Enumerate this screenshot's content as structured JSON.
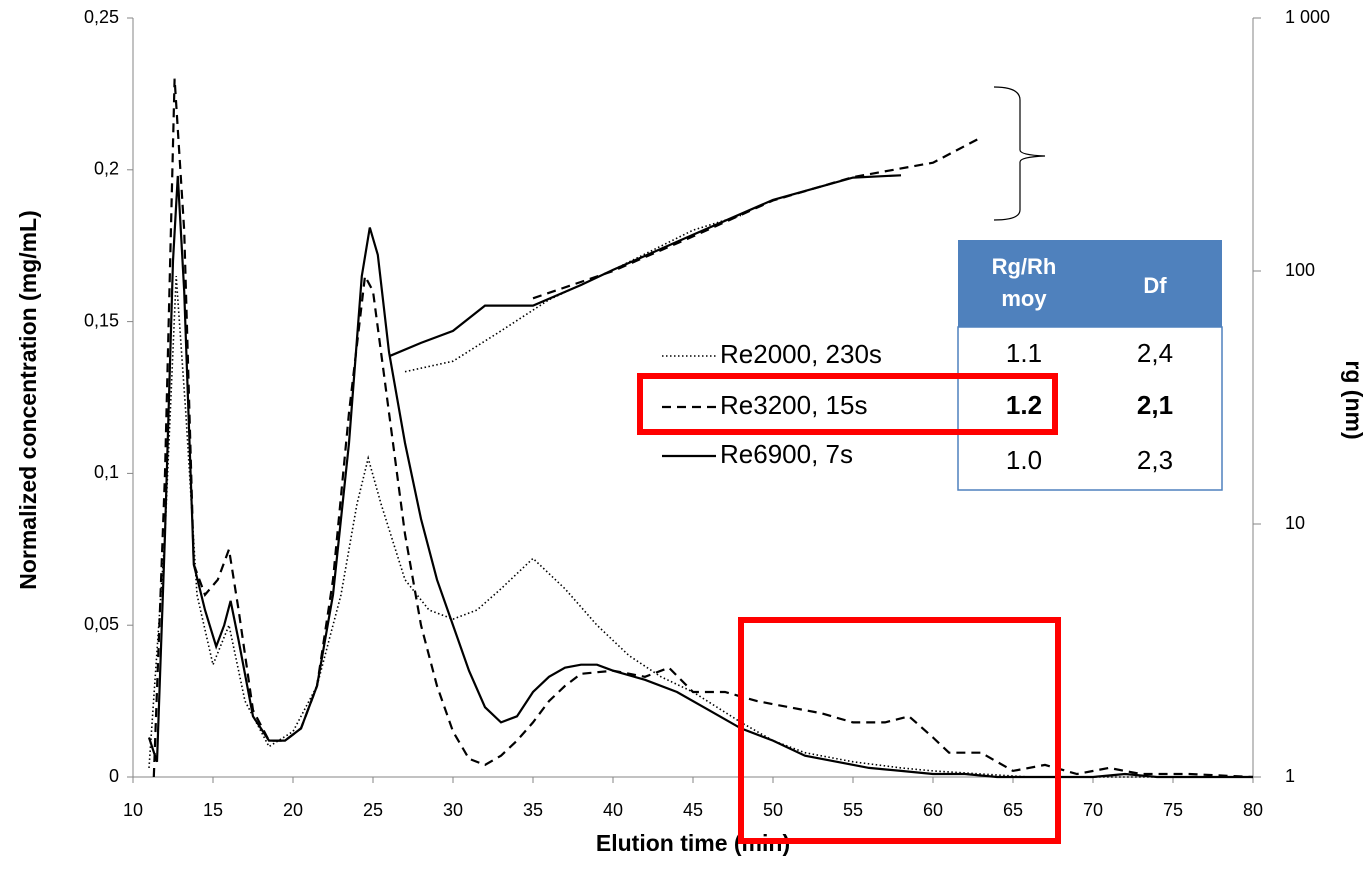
{
  "chart_data": {
    "type": "line",
    "xlabel": "Elution time (min)",
    "ylabel": "Normalized concentration (mg/mL)",
    "y2label": "rg (nm)",
    "xlim": [
      10,
      80
    ],
    "xticks": [
      10,
      15,
      20,
      25,
      30,
      35,
      40,
      45,
      50,
      55,
      60,
      65,
      70,
      75,
      80
    ],
    "ylim": [
      0,
      0.25
    ],
    "yticks": [
      0,
      {
        "value": 0.05,
        "label": "0,05"
      },
      {
        "value": 0.1,
        "label": "0,1"
      },
      {
        "value": 0.15,
        "label": "0,15"
      },
      {
        "value": 0.2,
        "label": "0,2"
      },
      {
        "value": 0.25,
        "label": "0,25"
      }
    ],
    "y2lim": [
      1,
      1000
    ],
    "y2scale": "log",
    "y2ticks": [
      1,
      10,
      100,
      {
        "value": 1000,
        "label": "1 000"
      }
    ],
    "series": [
      {
        "name": "Re2000, 230s",
        "color": "#000000",
        "dash": "dot",
        "x": [
          11,
          12,
          12.7,
          13.3,
          14,
          15,
          16,
          17,
          18.5,
          20,
          21.5,
          23,
          24,
          24.7,
          25.5,
          27,
          28.5,
          30,
          31.5,
          33,
          35,
          37,
          39,
          41,
          43,
          45,
          48,
          50,
          52,
          55,
          58,
          60,
          63,
          66,
          70,
          75,
          80
        ],
        "values": [
          0.003,
          0.08,
          0.165,
          0.12,
          0.06,
          0.037,
          0.05,
          0.025,
          0.01,
          0.015,
          0.03,
          0.06,
          0.09,
          0.105,
          0.09,
          0.065,
          0.055,
          0.052,
          0.055,
          0.062,
          0.072,
          0.062,
          0.05,
          0.04,
          0.033,
          0.028,
          0.018,
          0.012,
          0.008,
          0.005,
          0.003,
          0.002,
          0.001,
          0,
          0,
          0,
          0
        ]
      },
      {
        "name": "Re3200, 15s",
        "color": "#000000",
        "dash": "dash",
        "x": [
          11.3,
          12,
          12.6,
          13.2,
          13.8,
          14.5,
          15.3,
          16,
          16.6,
          17.5,
          18.5,
          19.5,
          20.5,
          21.5,
          22.5,
          23.5,
          24.5,
          25,
          26,
          27,
          28,
          29,
          30,
          31,
          32,
          33,
          34,
          35,
          36,
          37,
          38,
          40,
          42,
          43.5,
          45,
          47,
          49,
          51,
          53,
          55,
          57,
          58.5,
          60,
          61,
          63,
          65,
          67,
          69,
          71,
          73,
          76,
          80
        ],
        "values": [
          0,
          0.1,
          0.23,
          0.18,
          0.07,
          0.06,
          0.065,
          0.075,
          0.055,
          0.022,
          0.012,
          0.012,
          0.016,
          0.03,
          0.065,
          0.12,
          0.165,
          0.16,
          0.12,
          0.08,
          0.05,
          0.03,
          0.015,
          0.006,
          0.004,
          0.007,
          0.012,
          0.018,
          0.025,
          0.03,
          0.034,
          0.035,
          0.033,
          0.036,
          0.028,
          0.028,
          0.025,
          0.023,
          0.021,
          0.018,
          0.018,
          0.02,
          0.013,
          0.008,
          0.008,
          0.002,
          0.004,
          0.001,
          0.003,
          0.001,
          0.001,
          0
        ]
      },
      {
        "name": "Re6900, 7s",
        "color": "#000000",
        "dash": "solid",
        "x": [
          11,
          11.5,
          12,
          12.5,
          12.8,
          13.2,
          13.8,
          14.5,
          15.2,
          15.7,
          16.1,
          16.6,
          17.5,
          18.5,
          19.5,
          20.5,
          21.5,
          22.5,
          23.5,
          24.3,
          24.8,
          25.3,
          26,
          27,
          28,
          29,
          30,
          31,
          32,
          33,
          34,
          35,
          36,
          37,
          38,
          39,
          40,
          42,
          44,
          46,
          48,
          50,
          52,
          54,
          56,
          58,
          60,
          62,
          64,
          66,
          68,
          70,
          72,
          74,
          76,
          78,
          80
        ],
        "values": [
          0.013,
          0.005,
          0.08,
          0.17,
          0.198,
          0.16,
          0.07,
          0.055,
          0.043,
          0.05,
          0.058,
          0.045,
          0.02,
          0.012,
          0.012,
          0.016,
          0.03,
          0.06,
          0.11,
          0.165,
          0.181,
          0.172,
          0.14,
          0.11,
          0.085,
          0.065,
          0.05,
          0.035,
          0.023,
          0.018,
          0.02,
          0.028,
          0.033,
          0.036,
          0.037,
          0.037,
          0.035,
          0.032,
          0.028,
          0.022,
          0.016,
          0.012,
          0.007,
          0.005,
          0.003,
          0.002,
          0.001,
          0.001,
          0,
          0,
          0,
          0,
          0.001,
          0,
          0,
          0,
          0
        ]
      },
      {
        "color": "#000000",
        "dash": "dot",
        "axis": "y2",
        "x": [
          27,
          30,
          33,
          36,
          40,
          45,
          48
        ],
        "values": [
          40,
          44,
          58,
          77,
          101,
          145,
          166
        ]
      },
      {
        "color": "#000000",
        "dash": "dash",
        "axis": "y2",
        "x": [
          35,
          40,
          45,
          50,
          55,
          60,
          63
        ],
        "values": [
          78,
          100,
          137,
          190,
          235,
          268,
          337
        ]
      },
      {
        "color": "#000000",
        "dash": "solid",
        "axis": "y2",
        "x": [
          26,
          28,
          30,
          32,
          35,
          38,
          40,
          45,
          50,
          55,
          58
        ],
        "values": [
          46,
          52,
          58,
          73,
          73,
          88,
          101,
          139,
          191,
          234,
          239
        ]
      }
    ],
    "table": {
      "columns": [
        "Rg/Rh moy",
        "Df"
      ],
      "rows": [
        [
          "1.1",
          "2,4"
        ],
        [
          "1.2",
          "2,1"
        ],
        [
          "1.0",
          "2,3"
        ]
      ]
    }
  }
}
